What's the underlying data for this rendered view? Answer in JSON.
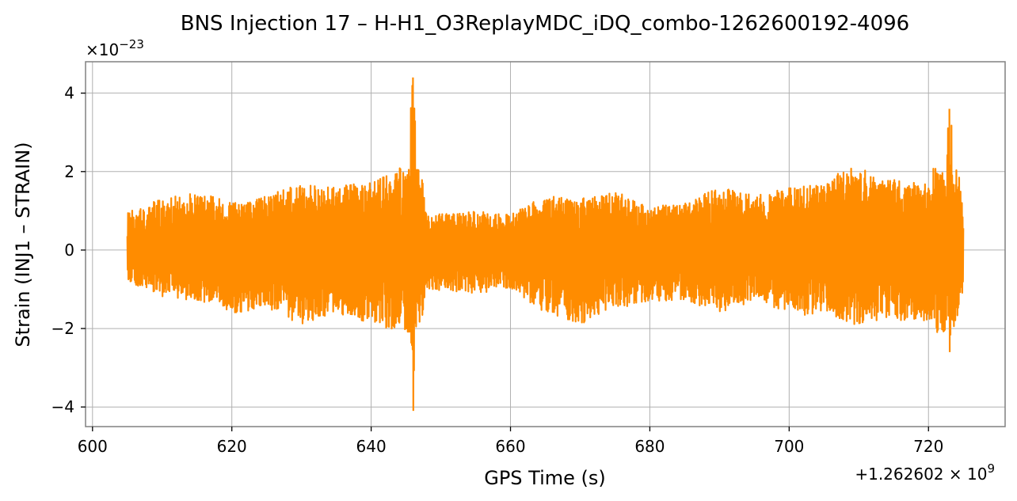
{
  "chart_data": {
    "type": "line",
    "title": "BNS Injection 17 – H-H1_O3ReplayMDC_iDQ_combo-1262600192-4096",
    "xlabel": "GPS Time (s)",
    "ylabel": "Strain (INJ1 – STRAIN)",
    "x_offset_text": {
      "base": "+1.262602 × 10",
      "exp": "9"
    },
    "y_scale_text": {
      "base": "×10",
      "exp": "−23"
    },
    "xlim": [
      599,
      731
    ],
    "ylim": [
      -4.5,
      4.8
    ],
    "x_ticks": [
      {
        "value": 600,
        "label": "600"
      },
      {
        "value": 620,
        "label": "620"
      },
      {
        "value": 640,
        "label": "640"
      },
      {
        "value": 660,
        "label": "660"
      },
      {
        "value": 680,
        "label": "680"
      },
      {
        "value": 700,
        "label": "700"
      },
      {
        "value": 720,
        "label": "720"
      }
    ],
    "y_ticks": [
      {
        "value": -4,
        "label": "−4"
      },
      {
        "value": -2,
        "label": "−2"
      },
      {
        "value": 0,
        "label": "0"
      },
      {
        "value": 2,
        "label": "2"
      },
      {
        "value": 4,
        "label": "4"
      }
    ],
    "grid": true,
    "series": [
      {
        "color": "#ff8c00",
        "x_start": 605,
        "x_end": 725,
        "envelope": [
          {
            "x": 605,
            "hi": 1.0,
            "lo": -0.8
          },
          {
            "x": 610,
            "hi": 1.3,
            "lo": -1.2
          },
          {
            "x": 615,
            "hi": 1.5,
            "lo": -1.3
          },
          {
            "x": 620,
            "hi": 1.2,
            "lo": -1.6
          },
          {
            "x": 625,
            "hi": 1.4,
            "lo": -1.5
          },
          {
            "x": 630,
            "hi": 1.7,
            "lo": -1.9
          },
          {
            "x": 635,
            "hi": 1.6,
            "lo": -1.6
          },
          {
            "x": 640,
            "hi": 1.8,
            "lo": -1.9
          },
          {
            "x": 644,
            "hi": 2.0,
            "lo": -2.1
          },
          {
            "x": 646,
            "hi": 4.4,
            "lo": -4.1
          },
          {
            "x": 648,
            "hi": 0.9,
            "lo": -1.0
          },
          {
            "x": 655,
            "hi": 1.0,
            "lo": -1.1
          },
          {
            "x": 660,
            "hi": 0.9,
            "lo": -1.0
          },
          {
            "x": 665,
            "hi": 1.4,
            "lo": -1.6
          },
          {
            "x": 670,
            "hi": 1.3,
            "lo": -1.9
          },
          {
            "x": 675,
            "hi": 1.5,
            "lo": -1.5
          },
          {
            "x": 680,
            "hi": 1.1,
            "lo": -1.3
          },
          {
            "x": 685,
            "hi": 1.2,
            "lo": -1.3
          },
          {
            "x": 690,
            "hi": 1.6,
            "lo": -1.6
          },
          {
            "x": 695,
            "hi": 1.4,
            "lo": -1.3
          },
          {
            "x": 700,
            "hi": 1.6,
            "lo": -1.7
          },
          {
            "x": 705,
            "hi": 1.7,
            "lo": -1.6
          },
          {
            "x": 709,
            "hi": 2.2,
            "lo": -1.9
          },
          {
            "x": 715,
            "hi": 1.8,
            "lo": -1.8
          },
          {
            "x": 720,
            "hi": 1.7,
            "lo": -1.8
          },
          {
            "x": 723,
            "hi": 3.6,
            "lo": -2.6
          },
          {
            "x": 725,
            "hi": 1.1,
            "lo": -1.0
          }
        ]
      }
    ]
  }
}
